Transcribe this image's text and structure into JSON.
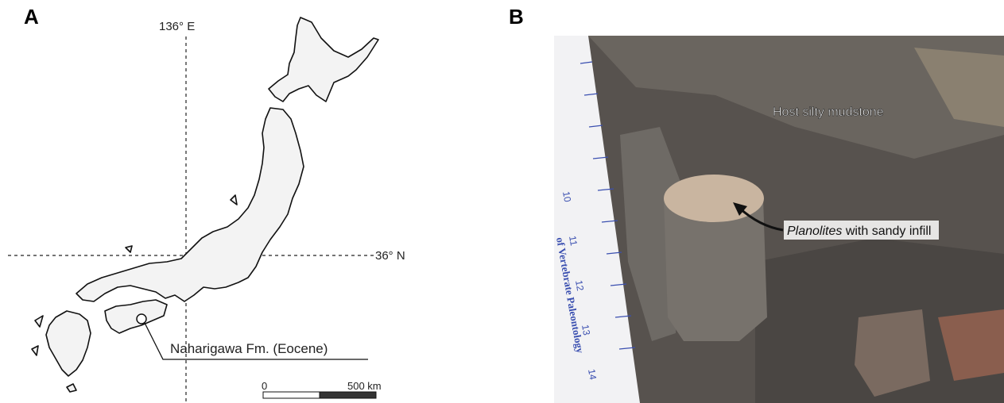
{
  "panel_a": {
    "label": "A",
    "longitude": "136° E",
    "latitude": "36° N",
    "locality": "Naharigawa Fm. (Eocene)",
    "scale_start": "0",
    "scale_end": "500 km"
  },
  "panel_b": {
    "label": "B",
    "host": "Host silty mudstone",
    "trace": {
      "taxon": "Planolites",
      "rest": " with sandy infill"
    },
    "ruler_numbers": [
      "10",
      "11",
      "12",
      "13",
      "14"
    ],
    "ruler_text": "of Vertebrate Paleontology"
  }
}
